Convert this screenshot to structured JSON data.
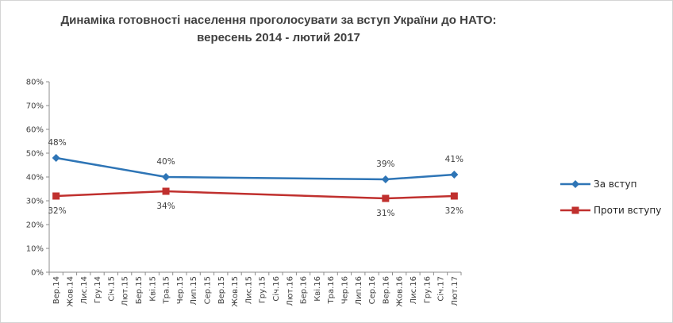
{
  "chart_data": {
    "type": "line",
    "title": [
      "Динаміка готовності населення проголосувати за вступ України до НАТО:",
      "вересень 2014 - лютий 2017"
    ],
    "categories": [
      "Вер.14",
      "Жов.14",
      "Лис.14",
      "Гру.14",
      "Сiч.15",
      "Лют.15",
      "Бер.15",
      "Кві.15",
      "Тра.15",
      "Чер.15",
      "Лип.15",
      "Сер.15",
      "Вер.15",
      "Жов.15",
      "Лис.15",
      "Гру.15",
      "Сiч.16",
      "Лют.16",
      "Бер.16",
      "Кві.16",
      "Тра.16",
      "Чер.16",
      "Лип.16",
      "Сер.16",
      "Вер.16",
      "Жов.16",
      "Лис.16",
      "Гру.16",
      "Сiч.17",
      "Лют.17"
    ],
    "y_ticks": [
      "0%",
      "10%",
      "20%",
      "30%",
      "40%",
      "50%",
      "60%",
      "70%",
      "80%"
    ],
    "ylim": [
      0,
      80
    ],
    "grid": false,
    "legend_position": "right",
    "series": [
      {
        "name": "За вступ",
        "color": "#2e75b6",
        "marker": "diamond",
        "points": [
          {
            "index": 0,
            "value": 48,
            "label": "48%"
          },
          {
            "index": 8,
            "value": 40,
            "label": "40%"
          },
          {
            "index": 24,
            "value": 39,
            "label": "39%"
          },
          {
            "index": 29,
            "value": 41,
            "label": "41%"
          }
        ]
      },
      {
        "name": "Проти вступу",
        "color": "#c0302e",
        "marker": "square",
        "points": [
          {
            "index": 0,
            "value": 32,
            "label": "32%"
          },
          {
            "index": 8,
            "value": 34,
            "label": "34%"
          },
          {
            "index": 24,
            "value": 31,
            "label": "31%"
          },
          {
            "index": 29,
            "value": 32,
            "label": "32%"
          }
        ]
      }
    ]
  }
}
